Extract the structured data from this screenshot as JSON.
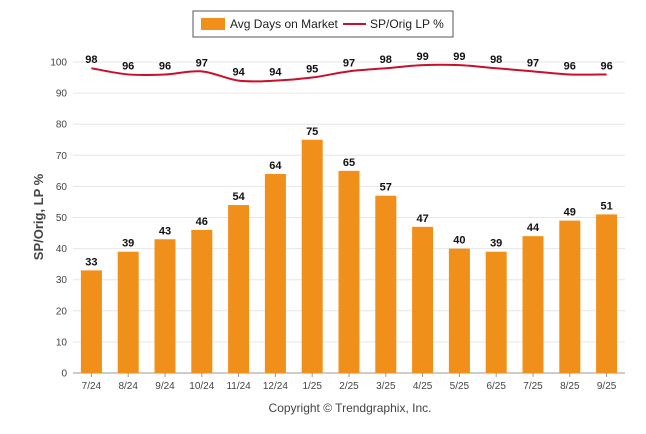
{
  "chart_data": {
    "type": "bar",
    "categories": [
      "7/24",
      "8/24",
      "9/24",
      "10/24",
      "11/24",
      "12/24",
      "1/25",
      "2/25",
      "3/25",
      "4/25",
      "5/25",
      "6/25",
      "7/25",
      "8/25",
      "9/25"
    ],
    "series": [
      {
        "name": "Avg Days on Market",
        "type": "bar",
        "color": "#F0901A",
        "values": [
          33,
          39,
          43,
          46,
          54,
          64,
          75,
          65,
          57,
          47,
          40,
          39,
          44,
          49,
          51
        ]
      },
      {
        "name": "SP/Orig LP %",
        "type": "line",
        "color": "#C8102E",
        "values": [
          98,
          96,
          96,
          97,
          94,
          94,
          95,
          97,
          98,
          99,
          99,
          98,
          97,
          96,
          96
        ]
      }
    ],
    "ylabel": "SP/Orig, LP %",
    "ylim": [
      0,
      100
    ],
    "yticks": [
      0,
      10,
      20,
      30,
      40,
      50,
      60,
      70,
      80,
      90,
      100
    ],
    "grid": true,
    "legend": "top-center"
  },
  "footer": {
    "copyright": "Copyright © Trendgraphix, Inc."
  }
}
